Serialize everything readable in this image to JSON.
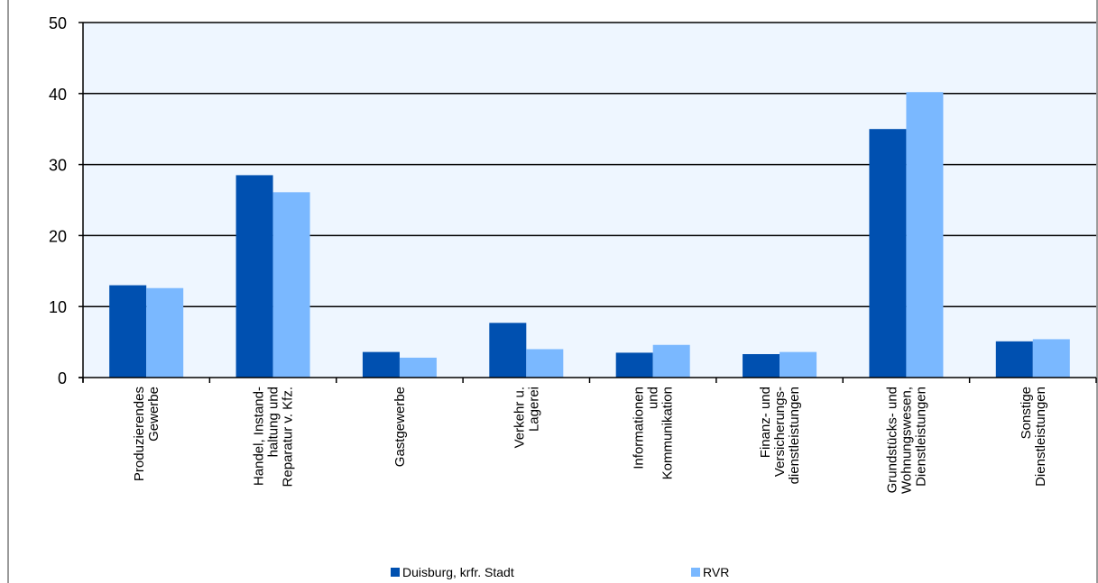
{
  "chart_data": {
    "type": "bar",
    "title": "",
    "xlabel": "",
    "ylabel": "",
    "ylim": [
      0,
      50
    ],
    "yticks": [
      0,
      10,
      20,
      30,
      40,
      50
    ],
    "grid": true,
    "legend_position": "bottom",
    "categories": [
      [
        "Produzierendes",
        "Gewerbe"
      ],
      [
        "Handel, Instand-",
        "haltung und",
        "Reparatur v. Kfz."
      ],
      [
        "Gastgewerbe"
      ],
      [
        "Verkehr u.",
        "Lagerei"
      ],
      [
        "Informationen",
        "und",
        "Kommunikation"
      ],
      [
        "Finanz- und",
        "Versicherungs-",
        "dienstleistungen"
      ],
      [
        "Grundstücks- und",
        "Wohnungswesen,",
        "Dienstleistungen"
      ],
      [
        "Sonstige",
        "Dienstleistungen"
      ]
    ],
    "series": [
      {
        "name": "Duisburg, krfr. Stadt",
        "color": "#0050B0",
        "values": [
          13.0,
          28.5,
          3.6,
          7.7,
          3.5,
          3.3,
          35.0,
          5.1
        ]
      },
      {
        "name": "RVR",
        "color": "#7AB8FF",
        "values": [
          12.6,
          26.1,
          2.8,
          4.0,
          4.6,
          3.6,
          40.2,
          5.4
        ]
      }
    ],
    "plot_background": "#EEF6FF"
  }
}
